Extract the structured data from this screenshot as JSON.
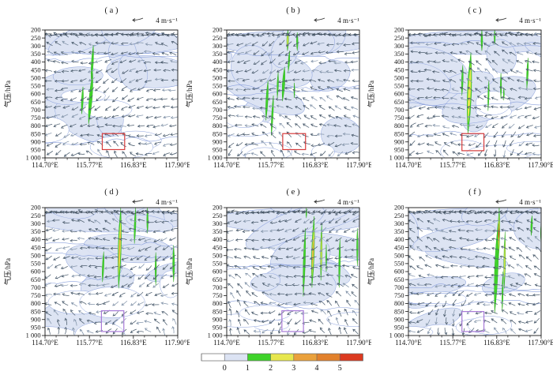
{
  "figure": {
    "panel_titles": [
      "( a )",
      "( b )",
      "( c )",
      "( d )",
      "( e )",
      "( f )"
    ],
    "reference_vector_label": "4 m·s⁻¹",
    "y_axis_label": "气压/hPa"
  },
  "chart_data": {
    "type": "heatmap",
    "description": "Six longitude-pressure cross sections (a-f) of wind vectors with shaded intensity (0-5 scale) and an analysis box in each panel.",
    "x_axis": {
      "label": "longitude",
      "tick_labels": [
        "114.70°E",
        "115.77°E",
        "116.83°E",
        "117.90°E"
      ],
      "tick_values": [
        114.7,
        115.77,
        116.83,
        117.9
      ],
      "range": [
        114.7,
        117.9
      ],
      "minor_ticks_between": 3
    },
    "y_axis": {
      "label": "气压/hPa",
      "tick_labels": [
        "200",
        "250",
        "300",
        "350",
        "400",
        "450",
        "500",
        "550",
        "600",
        "650",
        "700",
        "750",
        "800",
        "850",
        "900",
        "950",
        "1 000"
      ],
      "tick_values": [
        200,
        250,
        300,
        350,
        400,
        450,
        500,
        550,
        600,
        650,
        700,
        750,
        800,
        850,
        900,
        950,
        1000
      ],
      "range": [
        200,
        1000
      ],
      "inverted": true
    },
    "reference_vector": {
      "label": "4 m·s⁻¹",
      "value": 4,
      "units": "m/s"
    },
    "colorbar": {
      "tick_labels": [
        "0",
        "1",
        "2",
        "3",
        "4",
        "5"
      ],
      "segment_colors": [
        "#ffffff",
        "#dce3f3",
        "#3fd32a",
        "#e7e74e",
        "#eaa13c",
        "#e2812c",
        "#dc3a20"
      ],
      "position": "bottom"
    },
    "shading_level_colors": {
      "1": "#3fd32a",
      "2": "#e7e74e",
      "3": "#eaa13c",
      "4": "#dc3a20"
    },
    "panels": [
      {
        "label": "( a )",
        "box": {
          "lon": [
            116.08,
            116.62
          ],
          "pressure": [
            848,
            948
          ],
          "color": "#d63c3c"
        },
        "shaded_regions": [
          [
            115.84,
            295,
            520,
            0.1,
            0.05,
            1
          ],
          [
            115.8,
            470,
            790,
            0.15,
            0.1,
            1
          ],
          [
            115.6,
            555,
            725,
            0.09,
            0.03,
            1
          ]
        ]
      },
      {
        "label": "( b )",
        "box": {
          "lon": [
            116.05,
            116.6
          ],
          "pressure": [
            848,
            948
          ],
          "color": "#d63c3c"
        },
        "shaded_regions": [
          [
            116.17,
            200,
            330,
            0.09,
            0.01,
            2
          ],
          [
            116.2,
            330,
            460,
            0.07,
            0.03,
            1
          ],
          [
            116.4,
            215,
            330,
            0.07,
            0.0,
            1
          ],
          [
            116.07,
            430,
            645,
            0.12,
            0.05,
            1
          ],
          [
            115.93,
            465,
            625,
            0.07,
            0.02,
            1
          ],
          [
            115.67,
            515,
            765,
            0.1,
            0.05,
            1
          ],
          [
            115.8,
            610,
            860,
            0.08,
            0.05,
            1
          ],
          [
            116.33,
            530,
            625,
            0.05,
            0.0,
            1
          ]
        ]
      },
      {
        "label": "( c )",
        "box": {
          "lon": [
            115.99,
            116.52
          ],
          "pressure": [
            848,
            955
          ],
          "color": "#d63c3c"
        },
        "shaded_regions": [
          [
            116.17,
            340,
            850,
            0.2,
            0.07,
            2
          ],
          [
            116.0,
            420,
            610,
            0.08,
            0.02,
            1
          ],
          [
            116.47,
            200,
            330,
            0.08,
            0.0,
            1
          ],
          [
            116.78,
            200,
            290,
            0.06,
            0.0,
            1
          ],
          [
            116.93,
            470,
            630,
            0.06,
            0.0,
            1
          ],
          [
            117.57,
            375,
            565,
            0.08,
            0.03,
            1
          ],
          [
            116.63,
            515,
            705,
            0.06,
            0.02,
            1
          ],
          [
            117.0,
            560,
            640,
            0.05,
            0.0,
            1
          ]
        ]
      },
      {
        "label": "( d )",
        "box": {
          "lon": [
            116.06,
            116.6
          ],
          "pressure": [
            845,
            975
          ],
          "color": "#a87bd8"
        },
        "shaded_regions": [
          [
            116.5,
            200,
            705,
            0.15,
            0.05,
            3
          ],
          [
            116.87,
            200,
            425,
            0.08,
            0.03,
            1
          ],
          [
            117.17,
            200,
            360,
            0.07,
            0.0,
            1
          ],
          [
            116.1,
            475,
            665,
            0.08,
            0.03,
            1
          ],
          [
            117.37,
            480,
            685,
            0.07,
            0.0,
            1
          ],
          [
            117.8,
            435,
            665,
            0.09,
            0.0,
            1
          ]
        ]
      },
      {
        "label": "( e )",
        "box": {
          "lon": [
            116.03,
            116.55
          ],
          "pressure": [
            845,
            975
          ],
          "color": "#a87bd8"
        },
        "shaded_regions": [
          [
            116.78,
            255,
            700,
            0.13,
            0.05,
            3
          ],
          [
            116.57,
            330,
            755,
            0.1,
            0.05,
            1
          ],
          [
            116.98,
            300,
            655,
            0.08,
            0.02,
            2
          ],
          [
            117.42,
            395,
            700,
            0.08,
            0.02,
            1
          ],
          [
            117.85,
            330,
            565,
            0.07,
            0.0,
            1
          ],
          [
            116.62,
            200,
            265,
            0.05,
            0.0,
            1
          ],
          [
            117.1,
            430,
            600,
            0.05,
            0.0,
            1
          ]
        ]
      },
      {
        "label": "( f )",
        "box": {
          "lon": [
            115.99,
            116.52
          ],
          "pressure": [
            850,
            975
          ],
          "color": "#a87bd8"
        },
        "shaded_regions": [
          [
            116.82,
            300,
            860,
            0.17,
            0.08,
            1
          ],
          [
            116.88,
            200,
            520,
            0.095,
            0.02,
            4
          ],
          [
            117.02,
            350,
            705,
            0.08,
            0.02,
            2
          ],
          [
            117.67,
            250,
            375,
            0.08,
            0.02,
            1
          ],
          [
            116.97,
            600,
            850,
            0.06,
            0.02,
            1
          ],
          [
            117.9,
            300,
            420,
            0.06,
            0.0,
            1
          ]
        ]
      }
    ],
    "field_colors": {
      "background_shade": "#dce3f3",
      "contour_line": "#8aa0dc",
      "vector": "#4e5f70",
      "vector_light": "#8596ab",
      "axis": "#111111"
    }
  }
}
